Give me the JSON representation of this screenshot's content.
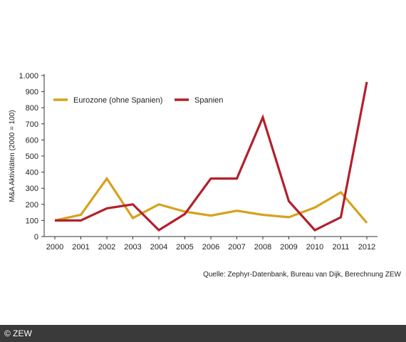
{
  "chart_data": {
    "type": "line",
    "x": [
      "2000",
      "2001",
      "2002",
      "2003",
      "2004",
      "2005",
      "2006",
      "2007",
      "2008",
      "2009",
      "2010",
      "2011",
      "2012"
    ],
    "series": [
      {
        "name": "Eurozone (ohne Spanien)",
        "color": "#d6a21e",
        "values": [
          100,
          135,
          360,
          115,
          200,
          155,
          130,
          160,
          135,
          120,
          180,
          275,
          85
        ]
      },
      {
        "name": "Spanien",
        "color": "#b3202b",
        "values": [
          100,
          100,
          175,
          200,
          40,
          140,
          360,
          360,
          740,
          220,
          40,
          120,
          960
        ]
      }
    ],
    "title": "",
    "xlabel": "",
    "ylabel": "M&A Aktivitäten (2000 = 100)",
    "ylim": [
      0,
      1000
    ],
    "yticks": [
      0,
      100,
      200,
      300,
      400,
      500,
      600,
      700,
      800,
      900,
      1000
    ],
    "ytick_labels": [
      "0",
      "100",
      "200",
      "300",
      "400",
      "500",
      "600",
      "700",
      "800",
      "900",
      "1.000"
    ],
    "grid": false,
    "legend": "top-left",
    "source": "Quelle: Zephyr-Datenbank, Bureau van Dijk, Berechnung ZEW"
  },
  "footer": {
    "copyright": "© ZEW"
  }
}
